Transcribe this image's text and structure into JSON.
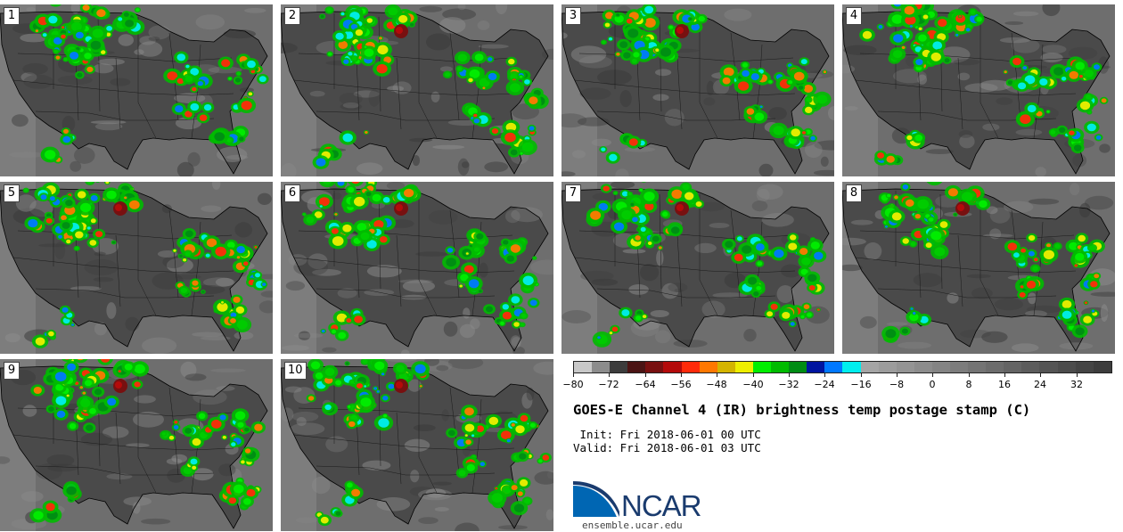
{
  "panels": [
    {
      "label": "1"
    },
    {
      "label": "2"
    },
    {
      "label": "3"
    },
    {
      "label": "4"
    },
    {
      "label": "5"
    },
    {
      "label": "6"
    },
    {
      "label": "7"
    },
    {
      "label": "8"
    },
    {
      "label": "9"
    },
    {
      "label": "10"
    }
  ],
  "colorbar": {
    "colors": [
      "#c8c8c8",
      "#8c8c8c",
      "#3c3c3c",
      "#4b1414",
      "#781010",
      "#b40a0a",
      "#ff2a0a",
      "#ff7800",
      "#d4b400",
      "#eeee00",
      "#00ee00",
      "#00bb00",
      "#008c14",
      "#0014a0",
      "#0078ff",
      "#00eeee",
      "#a5a5a5",
      "#9c9c9c",
      "#949494",
      "#8c8c8c",
      "#848484",
      "#7c7c7c",
      "#747474",
      "#6c6c6c",
      "#646464",
      "#5c5c5c",
      "#545454",
      "#4c4c4c",
      "#444444",
      "#3c3c3c"
    ],
    "ticks": [
      "−80",
      "−72",
      "−64",
      "−56",
      "−48",
      "−40",
      "−32",
      "−24",
      "−16",
      "−8",
      "0",
      "8",
      "16",
      "24",
      "32"
    ]
  },
  "title": "GOES-E Channel 4 (IR) brightness temp postage stamp (C)",
  "init": " Init: Fri 2018-06-01 00 UTC",
  "valid": "Valid: Fri 2018-06-01 03 UTC",
  "logo": {
    "name": "NCAR",
    "url": "ensemble.ucar.edu"
  },
  "colors": {
    "logo_blue": "#0066b3",
    "logo_navy": "#1a3b6e"
  }
}
